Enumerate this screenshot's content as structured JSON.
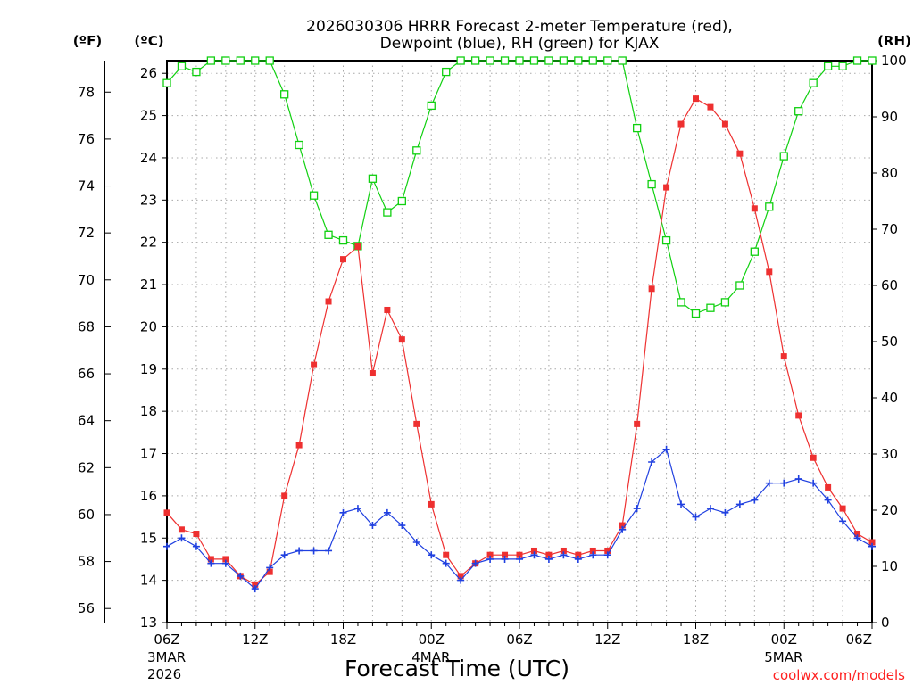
{
  "chart_data": {
    "type": "line",
    "title_line1": "2026030306 HRRR Forecast 2-meter Temperature (red),",
    "title_line2": "Dewpoint (blue), RH (green) for KJAX",
    "xlabel": "Forecast Time (UTC)",
    "credit": "coolwx.com/models",
    "x_hours": [
      0,
      1,
      2,
      3,
      4,
      5,
      6,
      7,
      8,
      9,
      10,
      11,
      12,
      13,
      14,
      15,
      16,
      17,
      18,
      19,
      20,
      21,
      22,
      23,
      24,
      25,
      26,
      27,
      28,
      29,
      30,
      31,
      32,
      33,
      34,
      35,
      36,
      37,
      38,
      39,
      40,
      41,
      42,
      43,
      44,
      45,
      46,
      47,
      48
    ],
    "x_range": [
      0,
      48
    ],
    "x_ticks": [
      {
        "hour": 0,
        "label": "06Z",
        "date1": "3MAR",
        "date2": "2026"
      },
      {
        "hour": 6,
        "label": "12Z"
      },
      {
        "hour": 12,
        "label": "18Z"
      },
      {
        "hour": 18,
        "label": "00Z",
        "date1": "4MAR"
      },
      {
        "hour": 24,
        "label": "06Z"
      },
      {
        "hour": 30,
        "label": "12Z"
      },
      {
        "hour": 36,
        "label": "18Z"
      },
      {
        "hour": 42,
        "label": "00Z",
        "date1": "5MAR"
      },
      {
        "hour": 48,
        "label": "06Z"
      }
    ],
    "axes": {
      "celsius": {
        "label": "(ºC)",
        "range": [
          13,
          26.3
        ],
        "ticks": [
          13,
          14,
          15,
          16,
          17,
          18,
          19,
          20,
          21,
          22,
          23,
          24,
          25,
          26
        ]
      },
      "fahrenheit": {
        "label": "(ºF)",
        "ticks": [
          56,
          58,
          60,
          62,
          64,
          66,
          68,
          70,
          72,
          74,
          76,
          78
        ]
      },
      "rh": {
        "label": "(RH)",
        "range": [
          0,
          100
        ],
        "ticks": [
          0,
          10,
          20,
          30,
          40,
          50,
          60,
          70,
          80,
          90,
          100
        ]
      }
    },
    "series": [
      {
        "name": "Temperature",
        "units": "C",
        "color": "#ee3030",
        "marker": "filled-square",
        "values": [
          15.6,
          15.2,
          15.1,
          14.5,
          14.5,
          14.1,
          13.9,
          14.2,
          16.0,
          17.2,
          19.1,
          20.6,
          21.6,
          21.9,
          18.9,
          20.4,
          19.7,
          17.7,
          15.8,
          14.6,
          14.1,
          14.4,
          14.6,
          14.6,
          14.6,
          14.7,
          14.6,
          14.7,
          14.6,
          14.7,
          14.7,
          15.3,
          17.7,
          20.9,
          23.3,
          24.8,
          25.4,
          25.2,
          24.8,
          24.1,
          22.8,
          21.3,
          19.3,
          17.9,
          16.9,
          16.2,
          15.7,
          15.1,
          14.9
        ]
      },
      {
        "name": "Dewpoint",
        "units": "C",
        "color": "#2040e0",
        "marker": "plus",
        "values": [
          14.8,
          15.0,
          14.8,
          14.4,
          14.4,
          14.1,
          13.8,
          14.3,
          14.6,
          14.7,
          14.7,
          14.7,
          15.6,
          15.7,
          15.3,
          15.6,
          15.3,
          14.9,
          14.6,
          14.4,
          14.0,
          14.4,
          14.5,
          14.5,
          14.5,
          14.6,
          14.5,
          14.6,
          14.5,
          14.6,
          14.6,
          15.2,
          15.7,
          16.8,
          17.1,
          15.8,
          15.5,
          15.7,
          15.6,
          15.8,
          15.9,
          16.3,
          16.3,
          16.4,
          16.3,
          15.9,
          15.4,
          15.0,
          14.8
        ]
      },
      {
        "name": "RH",
        "units": "%",
        "color": "#10d010",
        "marker": "open-square",
        "values": [
          96,
          99,
          98,
          100,
          100,
          100,
          100,
          100,
          94,
          85,
          76,
          69,
          68,
          67,
          79,
          73,
          75,
          84,
          92,
          98,
          100,
          100,
          100,
          100,
          100,
          100,
          100,
          100,
          100,
          100,
          100,
          100,
          88,
          78,
          68,
          57,
          55,
          56,
          57,
          60,
          66,
          74,
          83,
          91,
          96,
          99,
          99,
          100,
          100
        ]
      }
    ]
  }
}
